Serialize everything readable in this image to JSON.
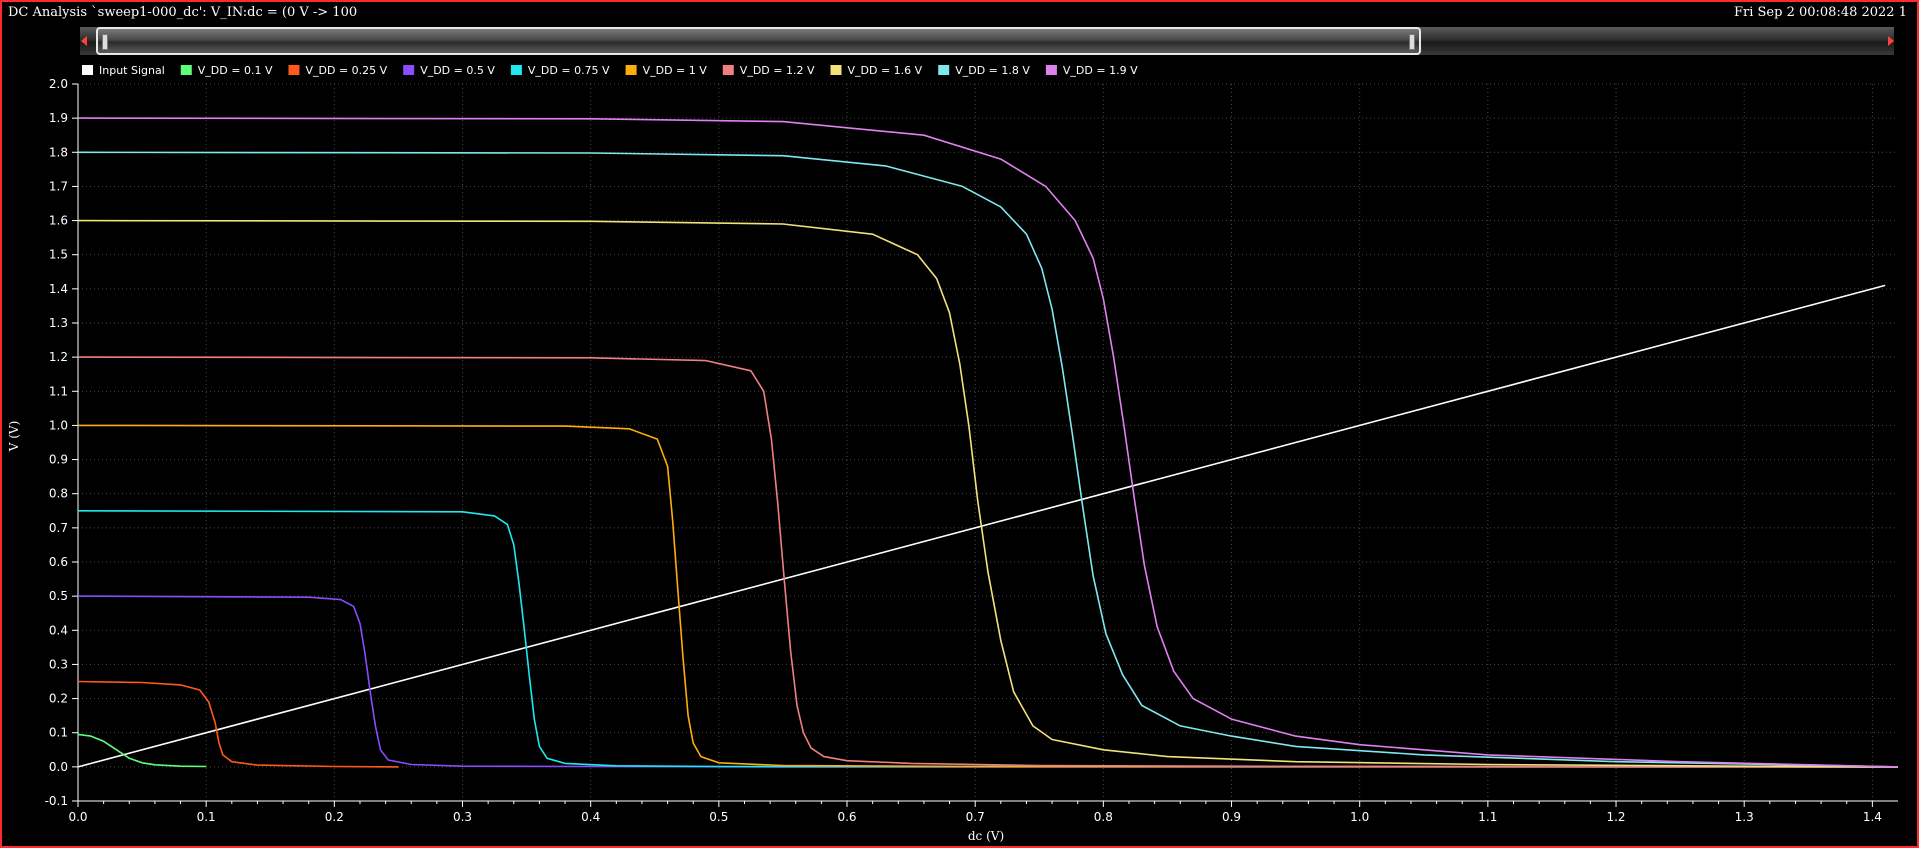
{
  "window": {
    "title": "DC Analysis `sweep1-000_dc': V_IN:dc = (0 V -> 100",
    "datetime": "Fri Sep 2 00:08:48 2022  1"
  },
  "colors": {
    "frame": "#ff2a2a",
    "background": "#000000",
    "grid": "#4a4a4a",
    "text": "#ffffff"
  },
  "chart_data": {
    "type": "line",
    "xlabel": "dc (V)",
    "ylabel": "V (V)",
    "xlim": [
      0,
      1.42
    ],
    "ylim": [
      -0.1,
      2.0
    ],
    "x_ticks": [
      "0.0",
      "0.1",
      "0.2",
      "0.3",
      "0.4",
      "0.5",
      "0.6",
      "0.7",
      "0.8",
      "0.9",
      "1.0",
      "1.1",
      "1.2",
      "1.3",
      "1.4"
    ],
    "y_ticks": [
      "-0.1",
      "0.0",
      "0.1",
      "0.2",
      "0.3",
      "0.4",
      "0.5",
      "0.6",
      "0.7",
      "0.8",
      "0.9",
      "1.0",
      "1.1",
      "1.2",
      "1.3",
      "1.4",
      "1.5",
      "1.6",
      "1.7",
      "1.8",
      "1.9",
      "2.0"
    ],
    "grid": true,
    "legend_position": "top-left",
    "series": [
      {
        "name": "Input Signal",
        "color": "#ffffff",
        "x": [
          0,
          1.41
        ],
        "y": [
          0,
          1.41
        ]
      },
      {
        "name": "V_DD = 0.1 V",
        "color": "#5dff7a",
        "x": [
          0,
          0.01,
          0.02,
          0.03,
          0.04,
          0.05,
          0.06,
          0.08,
          0.1
        ],
        "y": [
          0.095,
          0.09,
          0.075,
          0.05,
          0.025,
          0.012,
          0.006,
          0.002,
          0.001
        ]
      },
      {
        "name": "V_DD = 0.25 V",
        "color": "#ff5a1a",
        "x": [
          0,
          0.05,
          0.08,
          0.095,
          0.102,
          0.107,
          0.11,
          0.113,
          0.12,
          0.14,
          0.2,
          0.25
        ],
        "y": [
          0.25,
          0.247,
          0.24,
          0.225,
          0.19,
          0.13,
          0.07,
          0.035,
          0.015,
          0.005,
          0.001,
          0.0
        ]
      },
      {
        "name": "V_DD = 0.5 V",
        "color": "#8a4cff",
        "x": [
          0,
          0.18,
          0.205,
          0.215,
          0.22,
          0.224,
          0.228,
          0.232,
          0.236,
          0.242,
          0.26,
          0.3,
          0.4,
          0.55,
          1.42
        ],
        "y": [
          0.5,
          0.497,
          0.49,
          0.47,
          0.42,
          0.33,
          0.22,
          0.12,
          0.05,
          0.02,
          0.007,
          0.002,
          0.001,
          0.0,
          0.0
        ]
      },
      {
        "name": "V_DD = 0.75 V",
        "color": "#1ee8f0",
        "x": [
          0,
          0.3,
          0.325,
          0.335,
          0.34,
          0.344,
          0.348,
          0.352,
          0.356,
          0.36,
          0.366,
          0.38,
          0.42,
          0.5,
          1.42
        ],
        "y": [
          0.75,
          0.747,
          0.735,
          0.71,
          0.65,
          0.54,
          0.41,
          0.27,
          0.14,
          0.06,
          0.025,
          0.01,
          0.003,
          0.001,
          0.0
        ]
      },
      {
        "name": "V_DD = 1 V",
        "color": "#ffad0a",
        "x": [
          0,
          0.38,
          0.43,
          0.452,
          0.46,
          0.464,
          0.468,
          0.472,
          0.476,
          0.48,
          0.486,
          0.5,
          0.55,
          0.7,
          1.42
        ],
        "y": [
          1.0,
          0.998,
          0.99,
          0.96,
          0.88,
          0.72,
          0.52,
          0.32,
          0.15,
          0.07,
          0.03,
          0.012,
          0.004,
          0.001,
          0.0
        ]
      },
      {
        "name": "V_DD = 1.2 V",
        "color": "#f08080",
        "x": [
          0,
          0.4,
          0.49,
          0.525,
          0.535,
          0.541,
          0.546,
          0.551,
          0.556,
          0.561,
          0.566,
          0.572,
          0.582,
          0.6,
          0.65,
          0.75,
          0.9,
          1.42
        ],
        "y": [
          1.2,
          1.198,
          1.19,
          1.16,
          1.1,
          0.96,
          0.77,
          0.55,
          0.34,
          0.18,
          0.1,
          0.055,
          0.03,
          0.018,
          0.01,
          0.004,
          0.002,
          0.0
        ]
      },
      {
        "name": "V_DD = 1.6 V",
        "color": "#f3e27a",
        "x": [
          0,
          0.4,
          0.55,
          0.62,
          0.655,
          0.67,
          0.68,
          0.688,
          0.695,
          0.702,
          0.71,
          0.72,
          0.73,
          0.745,
          0.76,
          0.8,
          0.85,
          0.95,
          1.1,
          1.3,
          1.42
        ],
        "y": [
          1.6,
          1.598,
          1.59,
          1.56,
          1.5,
          1.43,
          1.33,
          1.18,
          1.0,
          0.78,
          0.57,
          0.37,
          0.22,
          0.12,
          0.08,
          0.05,
          0.03,
          0.015,
          0.007,
          0.002,
          0.0
        ]
      },
      {
        "name": "V_DD = 1.8 V",
        "color": "#7ee8f0",
        "x": [
          0,
          0.4,
          0.55,
          0.63,
          0.69,
          0.72,
          0.74,
          0.752,
          0.76,
          0.768,
          0.776,
          0.784,
          0.792,
          0.802,
          0.815,
          0.83,
          0.86,
          0.9,
          0.95,
          1.05,
          1.2,
          1.35,
          1.42
        ],
        "y": [
          1.8,
          1.798,
          1.79,
          1.76,
          1.7,
          1.64,
          1.56,
          1.46,
          1.34,
          1.17,
          0.97,
          0.76,
          0.56,
          0.39,
          0.27,
          0.18,
          0.12,
          0.09,
          0.06,
          0.035,
          0.015,
          0.005,
          0.0
        ]
      },
      {
        "name": "V_DD = 1.9 V",
        "color": "#e080f0",
        "x": [
          0,
          0.4,
          0.55,
          0.66,
          0.72,
          0.755,
          0.778,
          0.792,
          0.8,
          0.808,
          0.816,
          0.824,
          0.832,
          0.842,
          0.855,
          0.87,
          0.9,
          0.95,
          1.0,
          1.1,
          1.25,
          1.35,
          1.42
        ],
        "y": [
          1.9,
          1.898,
          1.89,
          1.85,
          1.78,
          1.7,
          1.6,
          1.49,
          1.37,
          1.2,
          1.0,
          0.79,
          0.59,
          0.41,
          0.28,
          0.2,
          0.14,
          0.09,
          0.065,
          0.035,
          0.015,
          0.006,
          0.0
        ]
      }
    ]
  }
}
